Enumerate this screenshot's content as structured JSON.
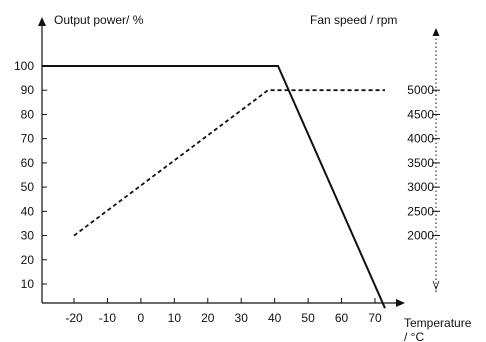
{
  "chart_data": {
    "type": "line",
    "title": "",
    "xlabel_line1": "Temperature",
    "xlabel_line2": "/ °C",
    "ylabel": "Output power/ %",
    "y2label": "Fan speed  / rpm",
    "x_ticks": [
      -20,
      -10,
      0,
      10,
      20,
      30,
      40,
      50,
      60,
      70
    ],
    "y_ticks": [
      10,
      20,
      30,
      40,
      50,
      60,
      70,
      80,
      90,
      100
    ],
    "y2_ticks": [
      2000,
      2500,
      3000,
      3500,
      4000,
      4500,
      5000
    ],
    "xlim": [
      -30,
      80
    ],
    "ylim": [
      0,
      115
    ],
    "y2_range_at_y": {
      "rpm_low": 2000,
      "y_low": 30,
      "rpm_high": 5000,
      "y_high": 90
    },
    "grid": false,
    "legend": "none",
    "series": [
      {
        "style": "solid",
        "axis": "left",
        "points": [
          [
            -30,
            100
          ],
          [
            41,
            100
          ],
          [
            73,
            0
          ]
        ]
      },
      {
        "style": "dashed",
        "axis": "left",
        "points": [
          [
            -20,
            30
          ],
          [
            38,
            90
          ],
          [
            73,
            90
          ]
        ]
      }
    ],
    "colors": {
      "line": "#111111",
      "background": "#ffffff"
    }
  }
}
